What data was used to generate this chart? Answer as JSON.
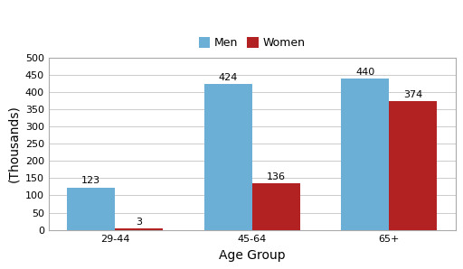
{
  "categories": [
    "29-44",
    "45-64",
    "65+"
  ],
  "men_values": [
    123,
    424,
    440
  ],
  "women_values": [
    3,
    136,
    374
  ],
  "men_color": "#6BAED6",
  "women_color": "#B22222",
  "xlabel": "Age Group",
  "ylabel": "(Thousands)",
  "ylim": [
    0,
    500
  ],
  "yticks": [
    0,
    50,
    100,
    150,
    200,
    250,
    300,
    350,
    400,
    450,
    500
  ],
  "legend_labels": [
    "Men",
    "Women"
  ],
  "bar_width": 0.35,
  "label_fontsize": 8,
  "axis_label_fontsize": 10,
  "tick_fontsize": 8,
  "background_color": "#FFFFFF",
  "grid_color": "#CCCCCC"
}
